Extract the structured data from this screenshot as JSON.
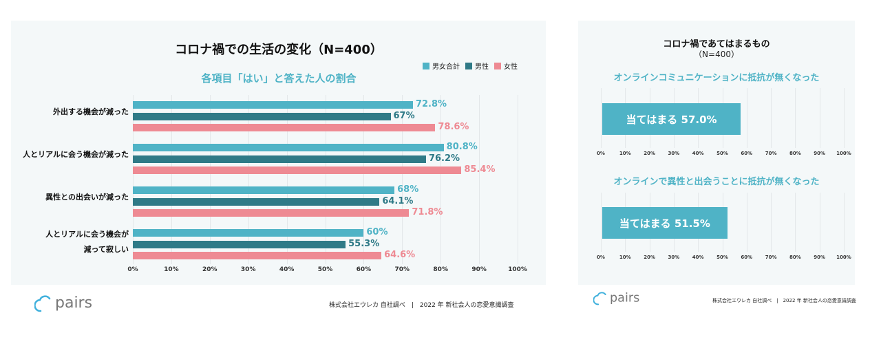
{
  "chart_data": [
    {
      "type": "bar",
      "orientation": "horizontal",
      "title": "コロナ禍での生活の変化（N=400）",
      "subtitle": "各項目「はい」と答えた人の割合",
      "categories": [
        "外出する機会が減った",
        "人とリアルに会う機会が減った",
        "異性との出会いが減った",
        "人とリアルに会う機会が\n減って寂しい"
      ],
      "series": [
        {
          "name": "男女合計",
          "color": "#4fb3c6",
          "values": [
            72.8,
            80.8,
            68,
            60
          ],
          "labels": [
            "72.8%",
            "80.8%",
            "68%",
            "60%"
          ]
        },
        {
          "name": "男性",
          "color": "#2f7a87",
          "values": [
            67,
            76.2,
            64.1,
            55.3
          ],
          "labels": [
            "67%",
            "76.2%",
            "64.1%",
            "55.3%"
          ]
        },
        {
          "name": "女性",
          "color": "#ee8a93",
          "values": [
            78.6,
            85.4,
            71.8,
            64.6
          ],
          "labels": [
            "78.6%",
            "85.4%",
            "71.8%",
            "64.6%"
          ]
        }
      ],
      "xlim": [
        0,
        100
      ],
      "xticks": [
        "0%",
        "10%",
        "20%",
        "30%",
        "40%",
        "50%",
        "60%",
        "70%",
        "80%",
        "90%",
        "100%"
      ],
      "grid": true,
      "legend": "top-right"
    },
    {
      "type": "bar",
      "orientation": "horizontal",
      "title": "コロナ禍であてはまるもの",
      "title_n": "（N=400）",
      "panels": [
        {
          "subtitle": "オンラインコミュニケーションに抵抗が無くなった",
          "value": 57.0,
          "label": "当てはまる 57.0%"
        },
        {
          "subtitle": "オンラインで異性と出会うことに抵抗が無くなった",
          "value": 51.5,
          "label": "当てはまる 51.5%"
        }
      ],
      "color": "#4fb3c6",
      "xlim": [
        0,
        100
      ],
      "xticks": [
        "0%",
        "10%",
        "20%",
        "30%",
        "40%",
        "50%",
        "60%",
        "70%",
        "80%",
        "90%",
        "100%"
      ],
      "grid": true
    }
  ],
  "brand": "pairs",
  "footer": "株式会社エウレカ 自社調べ　|　2022 年 新社会人の恋愛意識調査"
}
